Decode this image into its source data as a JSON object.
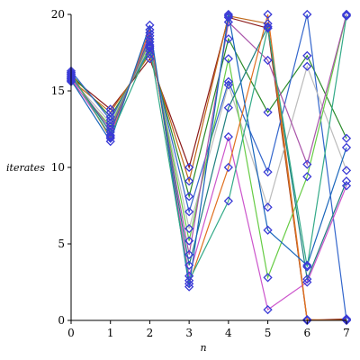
{
  "chart_data": {
    "type": "line",
    "xlabel": "n",
    "ylabel": "iterates",
    "xlim": [
      0,
      7
    ],
    "ylim": [
      0,
      20
    ],
    "x_ticks": [
      0,
      1,
      2,
      3,
      4,
      5,
      6,
      7
    ],
    "y_ticks": [
      0,
      5,
      10,
      15,
      20
    ],
    "x_tick_labels": [
      "0",
      "1",
      "2",
      "3",
      "4",
      "5",
      "6",
      "7"
    ],
    "y_tick_labels": [
      "0",
      "5",
      "10",
      "15",
      "20"
    ],
    "grid": false,
    "marker": "diamond",
    "marker_color": "#3a3ad6",
    "x": [
      0,
      1,
      2,
      3,
      4,
      5,
      6,
      7
    ],
    "series": [
      {
        "color": "#8b1a1a",
        "values": [
          15.9,
          13.8,
          17.1,
          10.0,
          19.8,
          19.1,
          0.0,
          0.1
        ]
      },
      {
        "color": "#c06a1c",
        "values": [
          15.7,
          13.6,
          17.4,
          9.1,
          19.9,
          19.4,
          0.0,
          0.05
        ]
      },
      {
        "color": "#2a8a2a",
        "values": [
          16.1,
          13.3,
          17.6,
          8.1,
          18.4,
          13.6,
          17.3,
          11.9
        ]
      },
      {
        "color": "#3366cc",
        "values": [
          16.3,
          13.1,
          17.8,
          7.1,
          15.6,
          9.7,
          20.0,
          0.0
        ]
      },
      {
        "color": "#bbbbbb",
        "values": [
          15.8,
          12.9,
          18.0,
          6.0,
          15.4,
          7.4,
          16.6,
          9.8
        ]
      },
      {
        "color": "#66cc44",
        "values": [
          15.6,
          12.7,
          18.2,
          5.2,
          17.1,
          2.8,
          9.4,
          20.0
        ]
      },
      {
        "color": "#aa55aa",
        "values": [
          15.9,
          12.5,
          18.4,
          4.3,
          19.5,
          17.0,
          10.2,
          20.0
        ]
      },
      {
        "color": "#1f7f7f",
        "values": [
          16.0,
          12.3,
          18.6,
          3.6,
          13.9,
          19.2,
          2.7,
          9.1
        ]
      },
      {
        "color": "#cc55cc",
        "values": [
          15.8,
          12.1,
          18.8,
          2.9,
          12.0,
          0.7,
          2.5,
          8.8
        ]
      },
      {
        "color": "#e07020",
        "values": [
          16.2,
          11.9,
          19.0,
          2.4,
          10.0,
          20.0,
          0.05,
          0.0
        ]
      },
      {
        "color": "#1a66bb",
        "values": [
          15.7,
          11.7,
          19.3,
          2.2,
          20.0,
          5.9,
          3.6,
          11.3
        ]
      },
      {
        "color": "#33aa88",
        "values": [
          16.1,
          12.0,
          17.9,
          2.6,
          7.8,
          19.1,
          3.5,
          19.9
        ]
      }
    ]
  }
}
